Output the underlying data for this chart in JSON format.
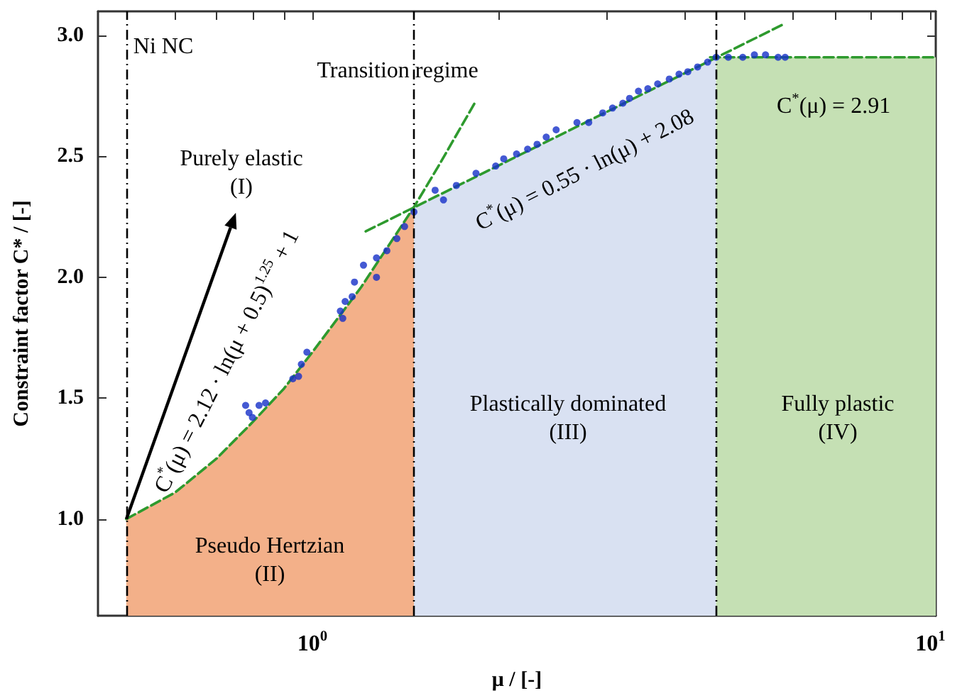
{
  "chart_data": {
    "type": "scatter",
    "xlabel": "μ / [-]",
    "ylabel": "Constraint factor C* / [-]",
    "log": "x",
    "xlim": [
      0.45,
      10.2
    ],
    "ylim": [
      0.6,
      3.1
    ],
    "xticks": [
      {
        "value": 0.5,
        "label": null
      },
      {
        "value": 0.6,
        "label": null
      },
      {
        "value": 0.7,
        "label": null
      },
      {
        "value": 0.8,
        "label": null
      },
      {
        "value": 0.9,
        "label": null
      },
      {
        "value": 1,
        "label": "10$^{0}$"
      },
      {
        "value": 2,
        "label": null
      },
      {
        "value": 3,
        "label": null
      },
      {
        "value": 4,
        "label": null
      },
      {
        "value": 5,
        "label": null
      },
      {
        "value": 6,
        "label": null
      },
      {
        "value": 7,
        "label": null
      },
      {
        "value": 8,
        "label": null
      },
      {
        "value": 9,
        "label": null
      },
      {
        "value": 10,
        "label": "10$^{1}$"
      }
    ],
    "yticks": [
      {
        "value": 1,
        "label": "1.0"
      },
      1.5,
      {
        "value": 2,
        "label": "2.0"
      },
      2.5,
      {
        "value": 3,
        "label": "3.0"
      }
    ],
    "series": [
      {
        "type": "area",
        "color": "#f3b089",
        "x": [
          0.5,
          0.6,
          0.7,
          0.8,
          0.9,
          1.0,
          1.2,
          1.46
        ],
        "values": [
          1.0,
          1.11,
          1.25,
          1.4,
          1.54,
          1.69,
          1.96,
          2.29
        ]
      },
      {
        "type": "area",
        "color": "#d9e1f2",
        "x": [
          1.46,
          4.5
        ],
        "values": [
          2.29,
          2.91
        ]
      },
      {
        "type": "area",
        "color": "#c5e0b4",
        "x": [
          4.5,
          10.2
        ],
        "values": [
          2.91,
          2.91
        ]
      },
      {
        "type": "line",
        "color": "#2e9a2e",
        "x": [
          0.5,
          0.6,
          0.7,
          0.8,
          0.9,
          1.0,
          1.2,
          1.46,
          1.6,
          1.84
        ],
        "values": [
          1.0,
          1.11,
          1.25,
          1.4,
          1.54,
          1.69,
          1.96,
          2.29,
          2.46,
          2.73
        ]
      },
      {
        "type": "line",
        "color": "#2e9a2e",
        "x": [
          1.22,
          5.82
        ],
        "values": [
          2.19,
          3.05
        ]
      },
      {
        "type": "line",
        "color": "#2e9a2e",
        "x": [
          4.4,
          10.2
        ],
        "values": [
          2.91,
          2.91
        ]
      },
      {
        "color": "#1530c8",
        "x": [
          0.78,
          0.79,
          0.8,
          0.82,
          0.84,
          0.93,
          0.95,
          0.96,
          0.98,
          1.11,
          1.12,
          1.13,
          1.16,
          1.17,
          1.21,
          1.27,
          1.27,
          1.32,
          1.37,
          1.41,
          1.46,
          1.58,
          1.63,
          1.71,
          1.84,
          1.98,
          2.04,
          2.14,
          2.23,
          2.31,
          2.39,
          2.48,
          2.68,
          2.8,
          2.95,
          3.06,
          3.18,
          3.26,
          3.37,
          3.49,
          3.62,
          3.78,
          3.92,
          4.05,
          4.2,
          4.36,
          4.5,
          4.71,
          4.97,
          5.19,
          5.41,
          5.67,
          5.82
        ],
        "values": [
          1.47,
          1.44,
          1.42,
          1.47,
          1.48,
          1.58,
          1.59,
          1.64,
          1.69,
          1.86,
          1.83,
          1.9,
          1.92,
          1.98,
          2.05,
          2.0,
          2.08,
          2.11,
          2.16,
          2.21,
          2.27,
          2.36,
          2.32,
          2.38,
          2.43,
          2.46,
          2.49,
          2.51,
          2.53,
          2.55,
          2.58,
          2.61,
          2.64,
          2.64,
          2.68,
          2.7,
          2.72,
          2.74,
          2.77,
          2.78,
          2.8,
          2.82,
          2.84,
          2.85,
          2.87,
          2.89,
          2.91,
          2.91,
          2.91,
          2.92,
          2.92,
          2.91,
          2.91
        ]
      }
    ],
    "ref_lines": [
      {
        "axis": "x",
        "value": 0.5,
        "color": "#000000",
        "line_style": "dashed"
      },
      {
        "axis": "x",
        "value": 1.46,
        "color": "#000000",
        "line_style": "dashed"
      },
      {
        "axis": "x",
        "value": 4.5,
        "color": "#000000",
        "line_style": "dashed"
      }
    ],
    "annotations": [
      "Ni NC",
      "Transition regime",
      {
        "text": "Purely elastic\n(I)",
        "x": 0.5,
        "y": 1.0
      },
      "Pseudo Hertzian\n(II)",
      "Plastically dominated\n(III)",
      "Fully plastic\n(IV)",
      "C$^{*}$(μ) = 2.12 · ln(μ + 0.5)$^{1.25}$ + 1",
      "C$^{*}$(μ) = 0.55 · ln(μ) + 2.08",
      "C$^{*}$(μ) = 2.91"
    ],
    "line_style": "dashed",
    "grid": false
  }
}
